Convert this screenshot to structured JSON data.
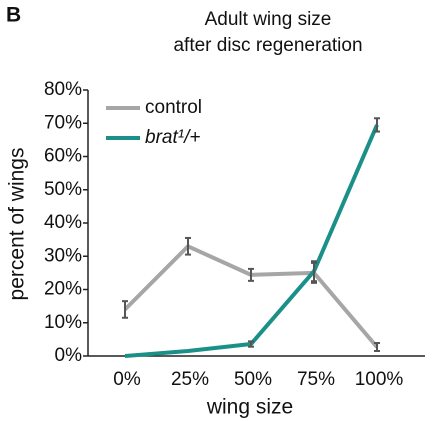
{
  "chart_data": {
    "type": "line",
    "panel_label": "B",
    "title": "Adult wing size",
    "subtitle": "after disc regeneration",
    "x_label": "wing size",
    "y_label": "percent of wings",
    "categories": [
      "0%",
      "25%",
      "50%",
      "75%",
      "100%"
    ],
    "series": [
      {
        "name": "control",
        "color": "#a6a6a6",
        "values": [
          14,
          33,
          24.4,
          25,
          2.7
        ],
        "errors": [
          2.5,
          2.5,
          1.8,
          3,
          1.2
        ]
      },
      {
        "name": "brat¹/+",
        "color": "#1a9089",
        "values": [
          0,
          1.5,
          3.6,
          25.5,
          69.5
        ],
        "errors": [
          null,
          null,
          0.8,
          3,
          2
        ]
      }
    ],
    "ylim": [
      0,
      80
    ],
    "yticks": [
      {
        "value": 0,
        "label": "0%"
      },
      {
        "value": 10,
        "label": "10%"
      },
      {
        "value": 20,
        "label": "20%"
      },
      {
        "value": 30,
        "label": "30%"
      },
      {
        "value": 40,
        "label": "40%"
      },
      {
        "value": 50,
        "label": "50%"
      },
      {
        "value": 60,
        "label": "60%"
      },
      {
        "value": 70,
        "label": "70%"
      },
      {
        "value": 80,
        "label": "80%"
      }
    ],
    "legend": "upper left",
    "error_color": "#555555"
  }
}
